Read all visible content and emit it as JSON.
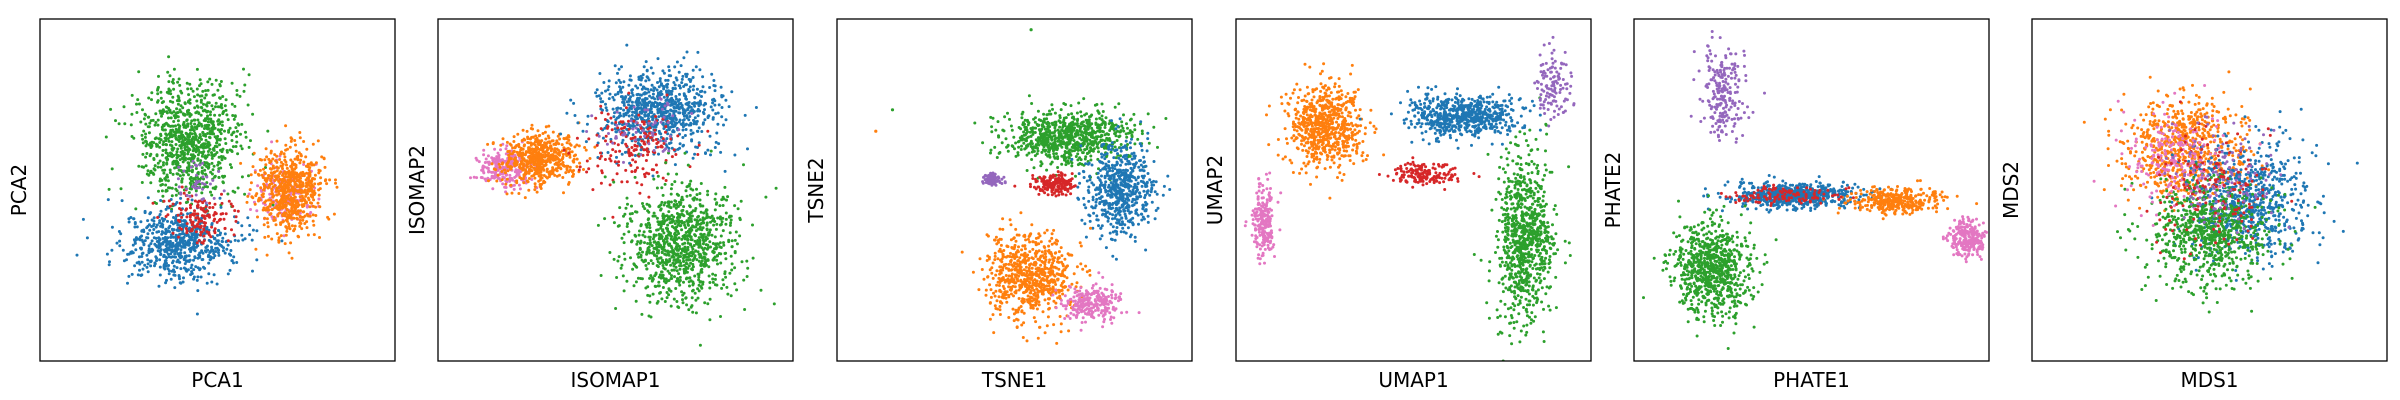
{
  "chart_data": [
    {
      "type": "scatter",
      "xlabel": "PCA1",
      "ylabel": "PCA2",
      "xlim": [
        -3.2,
        3.2
      ],
      "ylim": [
        -3.2,
        3.2
      ],
      "grid": false,
      "ticks": "none",
      "clusters": [
        {
          "color": "#2ca02c",
          "n": 900,
          "cx": -0.5,
          "cy": 0.9,
          "sx": 0.85,
          "sy": 1.0
        },
        {
          "color": "#1f77b4",
          "n": 650,
          "cx": -0.7,
          "cy": -1.0,
          "sx": 0.9,
          "sy": 0.6
        },
        {
          "color": "#d62728",
          "n": 150,
          "cx": -0.3,
          "cy": -0.5,
          "sx": 0.5,
          "sy": 0.4
        },
        {
          "color": "#e377c2",
          "n": 180,
          "cx": 1.2,
          "cy": -0.1,
          "sx": 0.45,
          "sy": 0.5
        },
        {
          "color": "#ff7f0e",
          "n": 650,
          "cx": 1.3,
          "cy": 0.0,
          "sx": 0.55,
          "sy": 0.7
        },
        {
          "color": "#9467bd",
          "n": 40,
          "cx": -0.4,
          "cy": 0.1,
          "sx": 0.4,
          "sy": 0.4
        }
      ]
    },
    {
      "type": "scatter",
      "xlabel": "ISOMAP1",
      "ylabel": "ISOMAP2",
      "xlim": [
        -3.2,
        3.2
      ],
      "ylim": [
        -3.2,
        3.2
      ],
      "grid": false,
      "ticks": "none",
      "clusters": [
        {
          "color": "#e377c2",
          "n": 220,
          "cx": -2.0,
          "cy": 0.4,
          "sx": 0.45,
          "sy": 0.35
        },
        {
          "color": "#ff7f0e",
          "n": 550,
          "cx": -1.4,
          "cy": 0.6,
          "sx": 0.6,
          "sy": 0.45
        },
        {
          "color": "#1f77b4",
          "n": 800,
          "cx": 0.8,
          "cy": 1.5,
          "sx": 1.0,
          "sy": 0.7
        },
        {
          "color": "#d62728",
          "n": 180,
          "cx": 0.3,
          "cy": 0.8,
          "sx": 0.8,
          "sy": 0.7
        },
        {
          "color": "#2ca02c",
          "n": 950,
          "cx": 1.2,
          "cy": -1.0,
          "sx": 0.9,
          "sy": 1.0
        },
        {
          "color": "#9467bd",
          "n": 60,
          "cx": 0.5,
          "cy": 1.2,
          "sx": 0.7,
          "sy": 0.5
        }
      ]
    },
    {
      "type": "scatter",
      "xlabel": "TSNE1",
      "ylabel": "TSNE2",
      "xlim": [
        -3.2,
        3.2
      ],
      "ylim": [
        -3.2,
        3.2
      ],
      "grid": false,
      "ticks": "none",
      "clusters": [
        {
          "color": "#2ca02c",
          "n": 800,
          "cx": 1.0,
          "cy": 1.0,
          "sx": 1.0,
          "sy": 0.45
        },
        {
          "color": "#1f77b4",
          "n": 600,
          "cx": 1.9,
          "cy": 0.0,
          "sx": 0.55,
          "sy": 0.8
        },
        {
          "color": "#ff7f0e",
          "n": 700,
          "cx": 0.3,
          "cy": -1.6,
          "sx": 0.75,
          "sy": 0.75
        },
        {
          "color": "#e377c2",
          "n": 250,
          "cx": 1.4,
          "cy": -2.1,
          "sx": 0.45,
          "sy": 0.3
        },
        {
          "color": "#d62728",
          "n": 180,
          "cx": 0.7,
          "cy": 0.1,
          "sx": 0.35,
          "sy": 0.18
        },
        {
          "color": "#9467bd",
          "n": 80,
          "cx": -0.4,
          "cy": 0.2,
          "sx": 0.14,
          "sy": 0.12
        }
      ],
      "outliers": [
        {
          "color": "#2ca02c",
          "x": 0.3,
          "y": 3.0
        },
        {
          "color": "#2ca02c",
          "x": -2.2,
          "y": 1.5
        },
        {
          "color": "#ff7f0e",
          "x": -2.5,
          "y": 1.1
        }
      ]
    },
    {
      "type": "scatter",
      "xlabel": "UMAP1",
      "ylabel": "UMAP2",
      "xlim": [
        -3.2,
        3.2
      ],
      "ylim": [
        -3.2,
        3.2
      ],
      "grid": false,
      "ticks": "none",
      "clusters": [
        {
          "color": "#ff7f0e",
          "n": 700,
          "cx": -1.6,
          "cy": 1.2,
          "sx": 0.6,
          "sy": 0.7
        },
        {
          "color": "#1f77b4",
          "n": 650,
          "cx": 0.9,
          "cy": 1.4,
          "sx": 0.9,
          "sy": 0.35
        },
        {
          "color": "#e377c2",
          "n": 220,
          "cx": -2.7,
          "cy": -0.6,
          "sx": 0.18,
          "sy": 0.6
        },
        {
          "color": "#d62728",
          "n": 160,
          "cx": 0.2,
          "cy": 0.3,
          "sx": 0.6,
          "sy": 0.2
        },
        {
          "color": "#2ca02c",
          "n": 850,
          "cx": 2.0,
          "cy": -0.9,
          "sx": 0.45,
          "sy": 1.4
        },
        {
          "color": "#9467bd",
          "n": 120,
          "cx": 2.5,
          "cy": 2.0,
          "sx": 0.25,
          "sy": 0.7
        }
      ]
    },
    {
      "type": "scatter",
      "xlabel": "PHATE1",
      "ylabel": "PHATE2",
      "xlim": [
        -3.2,
        3.2
      ],
      "ylim": [
        -3.2,
        3.2
      ],
      "grid": false,
      "ticks": "none",
      "clusters": [
        {
          "color": "#9467bd",
          "n": 220,
          "cx": -1.6,
          "cy": 1.8,
          "sx": 0.35,
          "sy": 0.8
        },
        {
          "color": "#1f77b4",
          "n": 650,
          "cx": -0.3,
          "cy": -0.1,
          "sx": 1.0,
          "sy": 0.2
        },
        {
          "color": "#ff7f0e",
          "n": 350,
          "cx": 1.5,
          "cy": -0.2,
          "sx": 0.7,
          "sy": 0.2
        },
        {
          "color": "#e377c2",
          "n": 250,
          "cx": 2.8,
          "cy": -0.9,
          "sx": 0.3,
          "sy": 0.3
        },
        {
          "color": "#d62728",
          "n": 120,
          "cx": -0.5,
          "cy": -0.1,
          "sx": 0.9,
          "sy": 0.15
        },
        {
          "color": "#2ca02c",
          "n": 800,
          "cx": -1.8,
          "cy": -1.5,
          "sx": 0.6,
          "sy": 0.8
        }
      ]
    },
    {
      "type": "scatter",
      "xlabel": "MDS1",
      "ylabel": "MDS2",
      "xlim": [
        -3.2,
        3.2
      ],
      "ylim": [
        -3.2,
        3.2
      ],
      "grid": false,
      "ticks": "none",
      "clusters": [
        {
          "color": "#ff7f0e",
          "n": 700,
          "cx": -0.5,
          "cy": 0.8,
          "sx": 1.0,
          "sy": 0.9
        },
        {
          "color": "#1f77b4",
          "n": 700,
          "cx": 0.7,
          "cy": -0.2,
          "sx": 1.0,
          "sy": 1.0
        },
        {
          "color": "#2ca02c",
          "n": 750,
          "cx": 0.0,
          "cy": -0.8,
          "sx": 1.0,
          "sy": 0.9
        },
        {
          "color": "#e377c2",
          "n": 200,
          "cx": -0.6,
          "cy": 0.6,
          "sx": 0.8,
          "sy": 0.8
        },
        {
          "color": "#d62728",
          "n": 160,
          "cx": 0.0,
          "cy": 0.0,
          "sx": 1.0,
          "sy": 1.0
        },
        {
          "color": "#9467bd",
          "n": 120,
          "cx": 0.2,
          "cy": 0.3,
          "sx": 1.0,
          "sy": 1.0
        }
      ]
    }
  ]
}
